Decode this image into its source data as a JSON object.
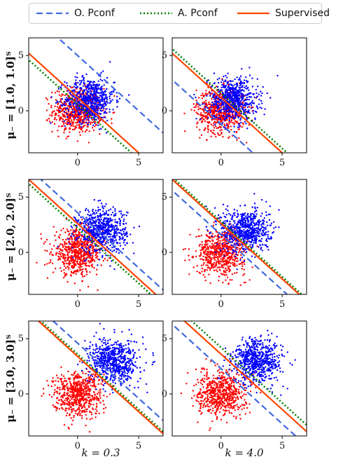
{
  "chart_data": {
    "type": "scatter",
    "legend": {
      "placement": "top",
      "entries": [
        {
          "name": "O. Pconf",
          "color": "#4169e1",
          "style": "dashed"
        },
        {
          "name": "A. Pconf",
          "color": "#008000",
          "style": "dotted"
        },
        {
          "name": "Supervised",
          "color": "#ff4500",
          "style": "solid"
        }
      ]
    },
    "columns": [
      {
        "label": "k = 0.3"
      },
      {
        "label": "k = 4.0"
      }
    ],
    "rows": [
      {
        "label": "μ₋ = [1.0, 1.0]ᵀ",
        "mu_neg": [
          1.0,
          1.0
        ]
      },
      {
        "label": "μ₋ = [2.0, 2.0]ᵀ",
        "mu_neg": [
          2.0,
          2.0
        ]
      },
      {
        "label": "μ₋ = [3.0, 3.0]ᵀ",
        "mu_neg": [
          3.0,
          3.0
        ]
      }
    ],
    "xlim": [
      -4,
      7
    ],
    "ylim": [
      -3.8,
      6.6
    ],
    "xticks": [
      0,
      5
    ],
    "yticks": [
      0,
      5
    ],
    "series_colors": {
      "positive": "#0000ff",
      "negative": "#ff0000"
    },
    "negative_class_mean": [
      0,
      0
    ],
    "boundaries": [
      [
        {
          "o_pconf": 5.0,
          "a_pconf": 0.6,
          "supervised": 1.2
        },
        {
          "o_pconf": -1.2,
          "a_pconf": 1.6,
          "supervised": 1.2
        }
      ],
      [
        {
          "o_pconf": 3.6,
          "a_pconf": 2.2,
          "supervised": 2.6
        },
        {
          "o_pconf": 1.6,
          "a_pconf": 2.8,
          "supervised": 2.6
        }
      ],
      [
        {
          "o_pconf": 4.6,
          "a_pconf": 3.6,
          "supervised": 3.4
        },
        {
          "o_pconf": 2.3,
          "a_pconf": 4.2,
          "supervised": 3.6
        }
      ]
    ]
  }
}
